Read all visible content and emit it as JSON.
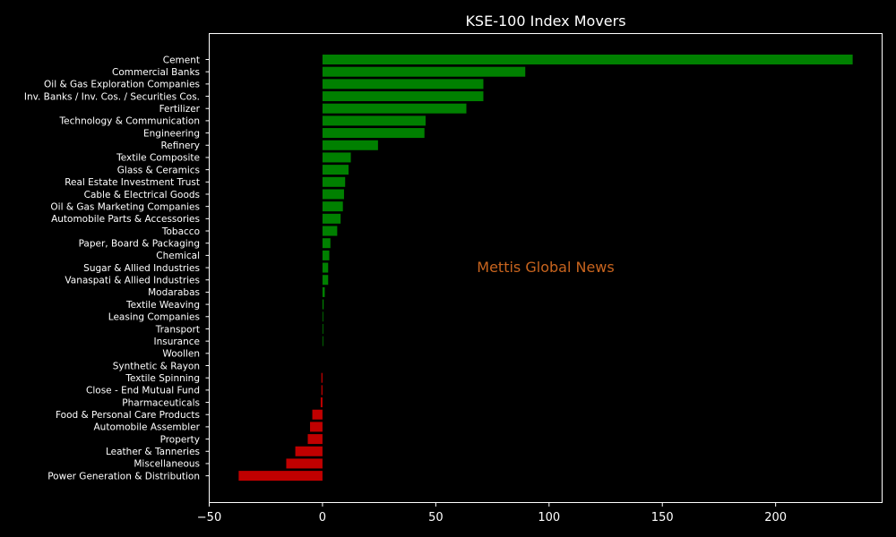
{
  "chart_data": {
    "type": "bar",
    "orientation": "horizontal",
    "title": "KSE-100 Index Movers",
    "watermark": "Mettis Global News",
    "xlabel": "",
    "ylabel": "",
    "xlim": [
      -50,
      247
    ],
    "xticks": [
      -50,
      0,
      50,
      100,
      150,
      200
    ],
    "grid": false,
    "legend": "none",
    "colors": {
      "background": "#000000",
      "positive": "#008000",
      "negative": "#c00000",
      "axis": "#ffffff",
      "text": "#ffffff",
      "watermark": "#c8641e"
    },
    "categories": [
      "Cement",
      "Commercial Banks",
      "Oil & Gas Exploration Companies",
      "Inv. Banks / Inv. Cos. / Securities Cos.",
      "Fertilizer",
      "Technology & Communication",
      "Engineering",
      "Refinery",
      "Textile Composite",
      "Glass & Ceramics",
      "Real Estate Investment Trust",
      "Cable & Electrical Goods",
      "Oil & Gas Marketing Companies",
      "Automobile Parts & Accessories",
      "Tobacco",
      "Paper, Board & Packaging",
      "Chemical",
      "Sugar & Allied Industries",
      "Vanaspati & Allied Industries",
      "Modarabas",
      "Textile Weaving",
      "Leasing Companies",
      "Transport",
      "Insurance",
      "Woollen",
      "Synthetic & Rayon",
      "Textile Spinning",
      "Close - End Mutual Fund",
      "Pharmaceuticals",
      "Food & Personal Care Products",
      "Automobile Assembler",
      "Property",
      "Leather & Tanneries",
      "Miscellaneous",
      "Power Generation & Distribution"
    ],
    "values": [
      234,
      89.5,
      71,
      71,
      63.5,
      45.5,
      45,
      24.5,
      12.5,
      11.5,
      10,
      9.5,
      9,
      8,
      6.5,
      3.5,
      3,
      2.5,
      2.5,
      1,
      0.5,
      0.3,
      0.3,
      0.3,
      0,
      0,
      -0.5,
      -0.5,
      -0.8,
      -4.5,
      -5.5,
      -6.5,
      -12,
      -16,
      -37
    ]
  }
}
